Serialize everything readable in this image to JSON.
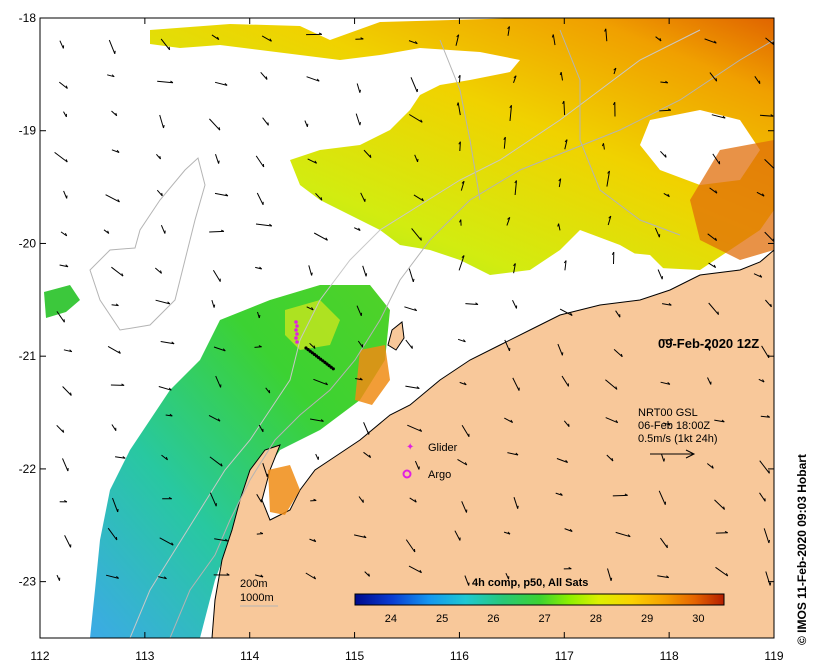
{
  "map": {
    "date_label": "09-Feb-2020 12Z",
    "lon_ticks": [
      "112",
      "113",
      "114",
      "115",
      "116",
      "117",
      "118",
      "119"
    ],
    "lat_ticks": [
      "-18",
      "-19",
      "-20",
      "-21",
      "-22",
      "-23"
    ],
    "lon_range": [
      112,
      119
    ],
    "lat_range": [
      -23.5,
      -18
    ],
    "current_legend": {
      "line1": "NRT00 GSL",
      "line2": "06-Feb 18:00Z",
      "line3": "0.5m/s (1kt 24h)"
    },
    "markers": {
      "glider_label": "Glider",
      "argo_label": "Argo"
    },
    "isobaths": {
      "label_200": "200m",
      "label_1000": "1000m"
    },
    "colorbar": {
      "title": "4h comp, p50, All Sats",
      "ticks": [
        "24",
        "25",
        "26",
        "27",
        "28",
        "29",
        "30"
      ],
      "range": [
        23.3,
        30.5
      ]
    },
    "credit": "© IMOS 11-Feb-2020 09:03 Hobart",
    "colors": {
      "land": "#f8c89a",
      "coast": "#000000",
      "isobath": "#b4b4b4",
      "glider": "#e020e0",
      "glider_track": "#000000"
    }
  }
}
